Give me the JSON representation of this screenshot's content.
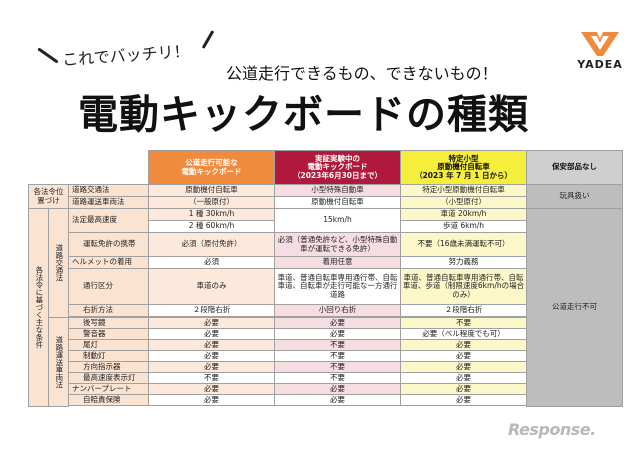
{
  "header": {
    "tagline": "これでバッチリ！",
    "subtitle": "公道走行できるもの、できないもの！",
    "title": "電動キックボードの種類",
    "logo_text": "YADEA",
    "logo_icon": "yadea-chevron-logo",
    "accent_color": "#f08a3c"
  },
  "columns": [
    {
      "line1": "公道走行可能な",
      "line2": "電動キックボード",
      "line3": ""
    },
    {
      "line1": "実証実験中の",
      "line2": "電動キックボード",
      "line3": "（2023年6月30日まで）"
    },
    {
      "line1": "特定小型",
      "line2": "原動機付自転車",
      "line3": "（2023 年 7 月 1 日から）"
    },
    {
      "line1": "保安部品なし",
      "line2": "",
      "line3": ""
    }
  ],
  "groups": {
    "law_position": "各法令位置づけ",
    "main_conditions": "各法令に基づく主な条件",
    "traffic_law": "道路交通法",
    "vehicle_law": "道路運送車両法"
  },
  "rows": {
    "r1": {
      "label": "道路交通法",
      "c1": "原動機付自転車",
      "c2": "小型特殊自動車",
      "c3": "特定小型原動機付自転車",
      "c4": "玩具扱い"
    },
    "r2": {
      "label": "道路運送車両法",
      "c1": "（一般原付）",
      "c2": "原動機付自転車",
      "c3": "（小型原付）"
    },
    "r3": {
      "label": "法定最高速度",
      "c1": "1 種  30km/h",
      "c2": "15km/h",
      "c3": "車道  20km/h"
    },
    "r4": {
      "c1": "2 種  60km/h",
      "c3": "歩道    6km/h"
    },
    "r5": {
      "label": "運転免許の携帯",
      "c1": "必須（原付免許）",
      "c2": "必須（普通免許など、小型特殊自動車が運転できる免許）",
      "c3": "不要（16歳未満運転不可）"
    },
    "r6": {
      "label": "ヘルメットの着用",
      "c1": "必須",
      "c2": "着用任意",
      "c3": "努力義務"
    },
    "r7": {
      "label": "通行区分",
      "c1": "車道のみ",
      "c2": "車道、普通自転車専用通行帯、自転車道、自転車が走行可能な一方通行道路",
      "c3": "車道、普通自転車専用通行帯、自転車道、歩道（制限速度6km/hの場合のみ）",
      "c4": "公道走行不可"
    },
    "r8": {
      "label": "右折方法",
      "c1": "２段階右折",
      "c2": "小回り右折",
      "c3": "２段階右折"
    },
    "r9": {
      "label": "後写鏡",
      "c1": "必要",
      "c2": "必要",
      "c3": "不要"
    },
    "r10": {
      "label": "警音器",
      "c1": "必要",
      "c2": "必要",
      "c3": "必要（ベル程度でも可）"
    },
    "r11": {
      "label": "尾灯",
      "c1": "必要",
      "c2": "不要",
      "c3": "必要"
    },
    "r12": {
      "label": "制動灯",
      "c1": "必要",
      "c2": "不要",
      "c3": "必要"
    },
    "r13": {
      "label": "方向指示器",
      "c1": "必要",
      "c2": "不要",
      "c3": "必要"
    },
    "r14": {
      "label": "最高速度表示灯",
      "c1": "不要",
      "c2": "不要",
      "c3": "必要"
    },
    "r15": {
      "label": "ナンバープレート",
      "c1": "必要",
      "c2": "必要",
      "c3": "必要"
    },
    "r16": {
      "label": "自賠責保険",
      "c1": "必要",
      "c2": "必要",
      "c3": "必要"
    }
  },
  "watermark": "Response."
}
